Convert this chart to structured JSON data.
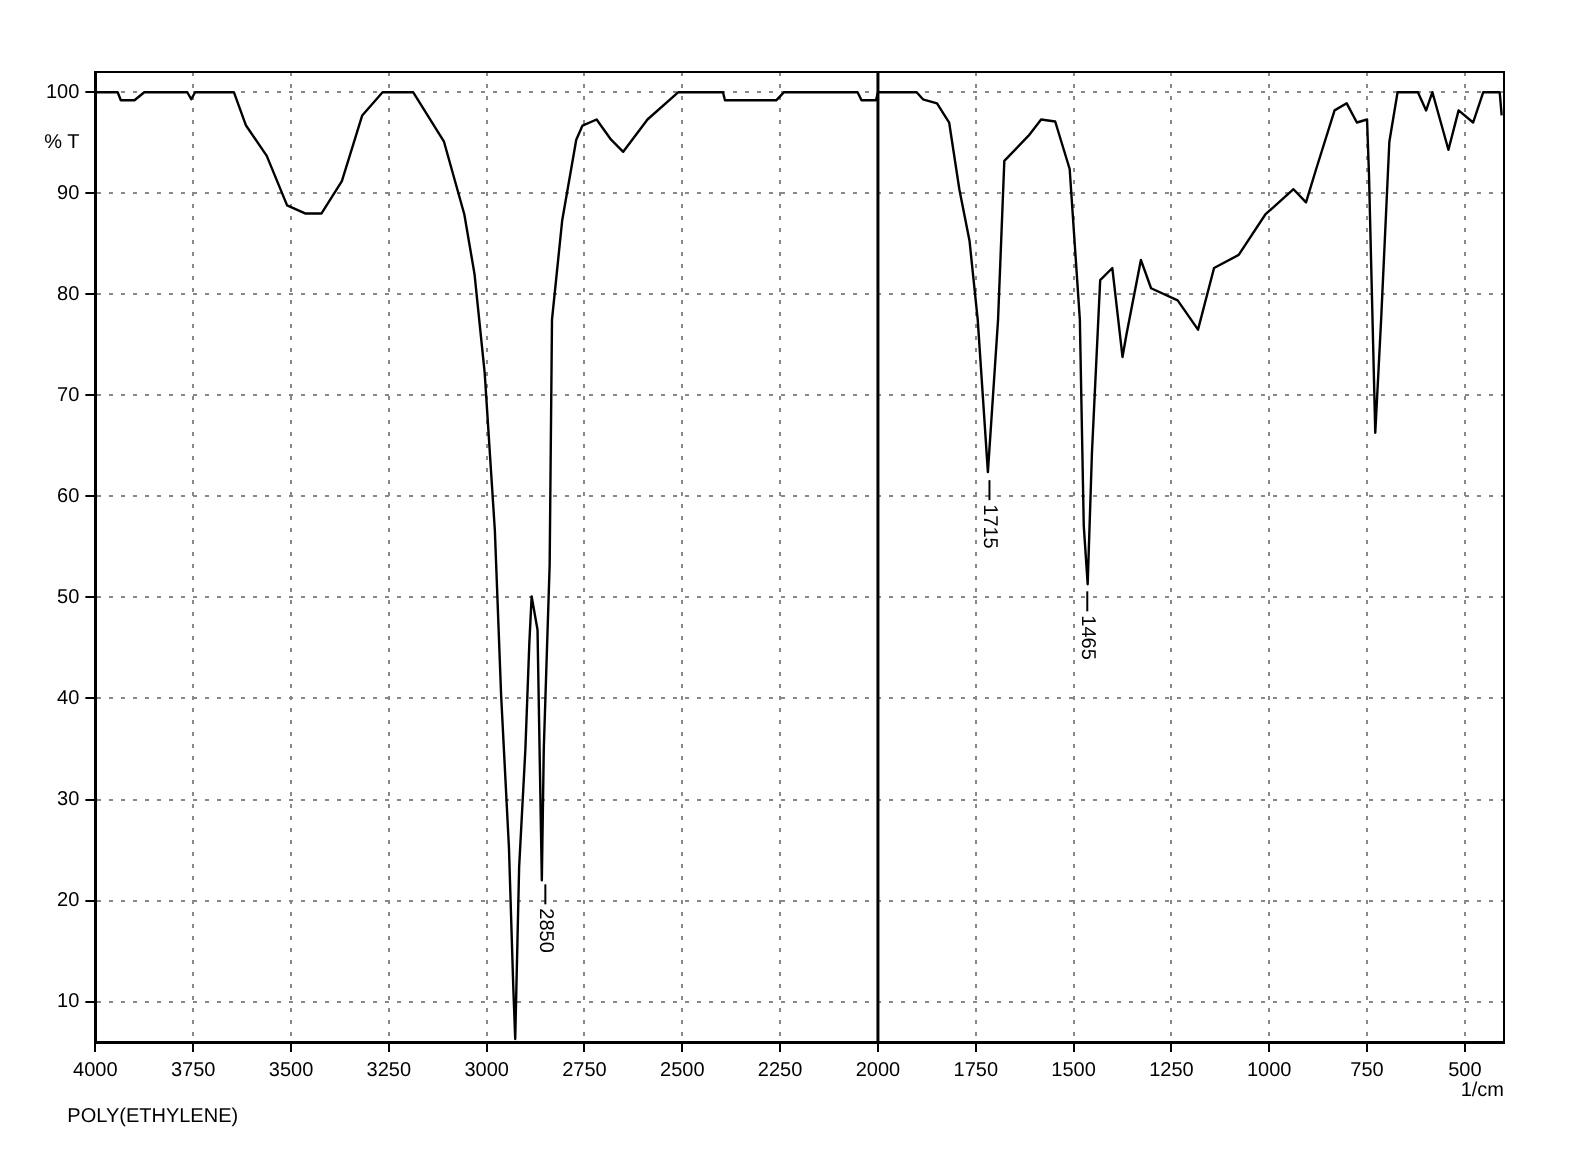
{
  "chart_data": {
    "type": "line",
    "xlabel": "1/cm",
    "ylabel": "% T",
    "xlim": [
      4000,
      400
    ],
    "ylim": [
      6,
      102
    ],
    "xticks": [
      4000,
      3750,
      3500,
      3250,
      3000,
      2750,
      2500,
      2250,
      2000,
      1750,
      1500,
      1250,
      1000,
      750,
      500
    ],
    "yticks": [
      10,
      20,
      30,
      40,
      50,
      60,
      70,
      80,
      90,
      100
    ],
    "grid": true,
    "legend": false,
    "marker": "none",
    "line_style": "solid",
    "ref_lines": [
      {
        "axis": "x",
        "value": 2000,
        "color": "#000000"
      }
    ],
    "annotations": [
      {
        "text": "2850",
        "x": 2850,
        "y": 22
      },
      {
        "text": "1715",
        "x": 1715,
        "y": 62
      },
      {
        "text": "1465",
        "x": 1465,
        "y": 51
      },
      "POLY(ETHYLENE)"
    ],
    "series": [
      {
        "color": "#000000",
        "x": [
          4000,
          3943,
          3935,
          3900,
          3875,
          3765,
          3755,
          3745,
          3646,
          3615,
          3562,
          3510,
          3464,
          3422,
          3370,
          3318,
          3266,
          3188,
          3109,
          3057,
          3031,
          3005,
          2979,
          2963,
          2943,
          2932,
          2927,
          2917,
          2901,
          2891,
          2885,
          2870,
          2859,
          2854,
          2839,
          2833,
          2807,
          2771,
          2755,
          2719,
          2682,
          2651,
          2589,
          2510,
          2396,
          2391,
          2260,
          2240,
          2052,
          2042,
          2005,
          2000,
          1901,
          1885,
          1849,
          1818,
          1792,
          1766,
          1745,
          1719,
          1693,
          1677,
          1615,
          1583,
          1547,
          1510,
          1484,
          1474,
          1464,
          1453,
          1432,
          1401,
          1375,
          1365,
          1328,
          1302,
          1234,
          1182,
          1141,
          1078,
          1010,
          938,
          906,
          880,
          833,
          802,
          776,
          750,
          745,
          729,
          714,
          693,
          672,
          620,
          599,
          583,
          542,
          516,
          479,
          453,
          411,
          406
        ],
        "values": [
          100,
          100,
          99.2,
          99.2,
          100,
          100,
          99.3,
          100,
          100,
          96.7,
          93.7,
          88.8,
          88,
          88,
          91.2,
          97.7,
          100,
          100,
          95.1,
          87.9,
          82,
          72.2,
          56.6,
          40.3,
          25.2,
          11.5,
          6.3,
          23.3,
          35,
          45.4,
          50.1,
          46.8,
          22,
          35,
          53.2,
          77.5,
          87.3,
          95.3,
          96.7,
          97.3,
          95.3,
          94.1,
          97.3,
          100,
          100,
          99.2,
          99.2,
          100,
          100,
          99.2,
          99.2,
          100,
          100,
          99.3,
          98.9,
          97,
          90.4,
          85.3,
          77.5,
          62.4,
          77.5,
          93.2,
          95.7,
          97.3,
          97.1,
          92.4,
          77.5,
          57.1,
          51.3,
          64.4,
          81.4,
          82.6,
          73.8,
          76,
          83.4,
          80.6,
          79.4,
          76.5,
          82.6,
          83.9,
          87.9,
          90.4,
          89.1,
          92.4,
          98.2,
          98.9,
          97,
          97.3,
          91.8,
          66.3,
          77.5,
          95.1,
          100,
          100,
          98.2,
          100,
          94.3,
          98.2,
          97,
          100,
          100,
          97.7
        ]
      }
    ]
  }
}
